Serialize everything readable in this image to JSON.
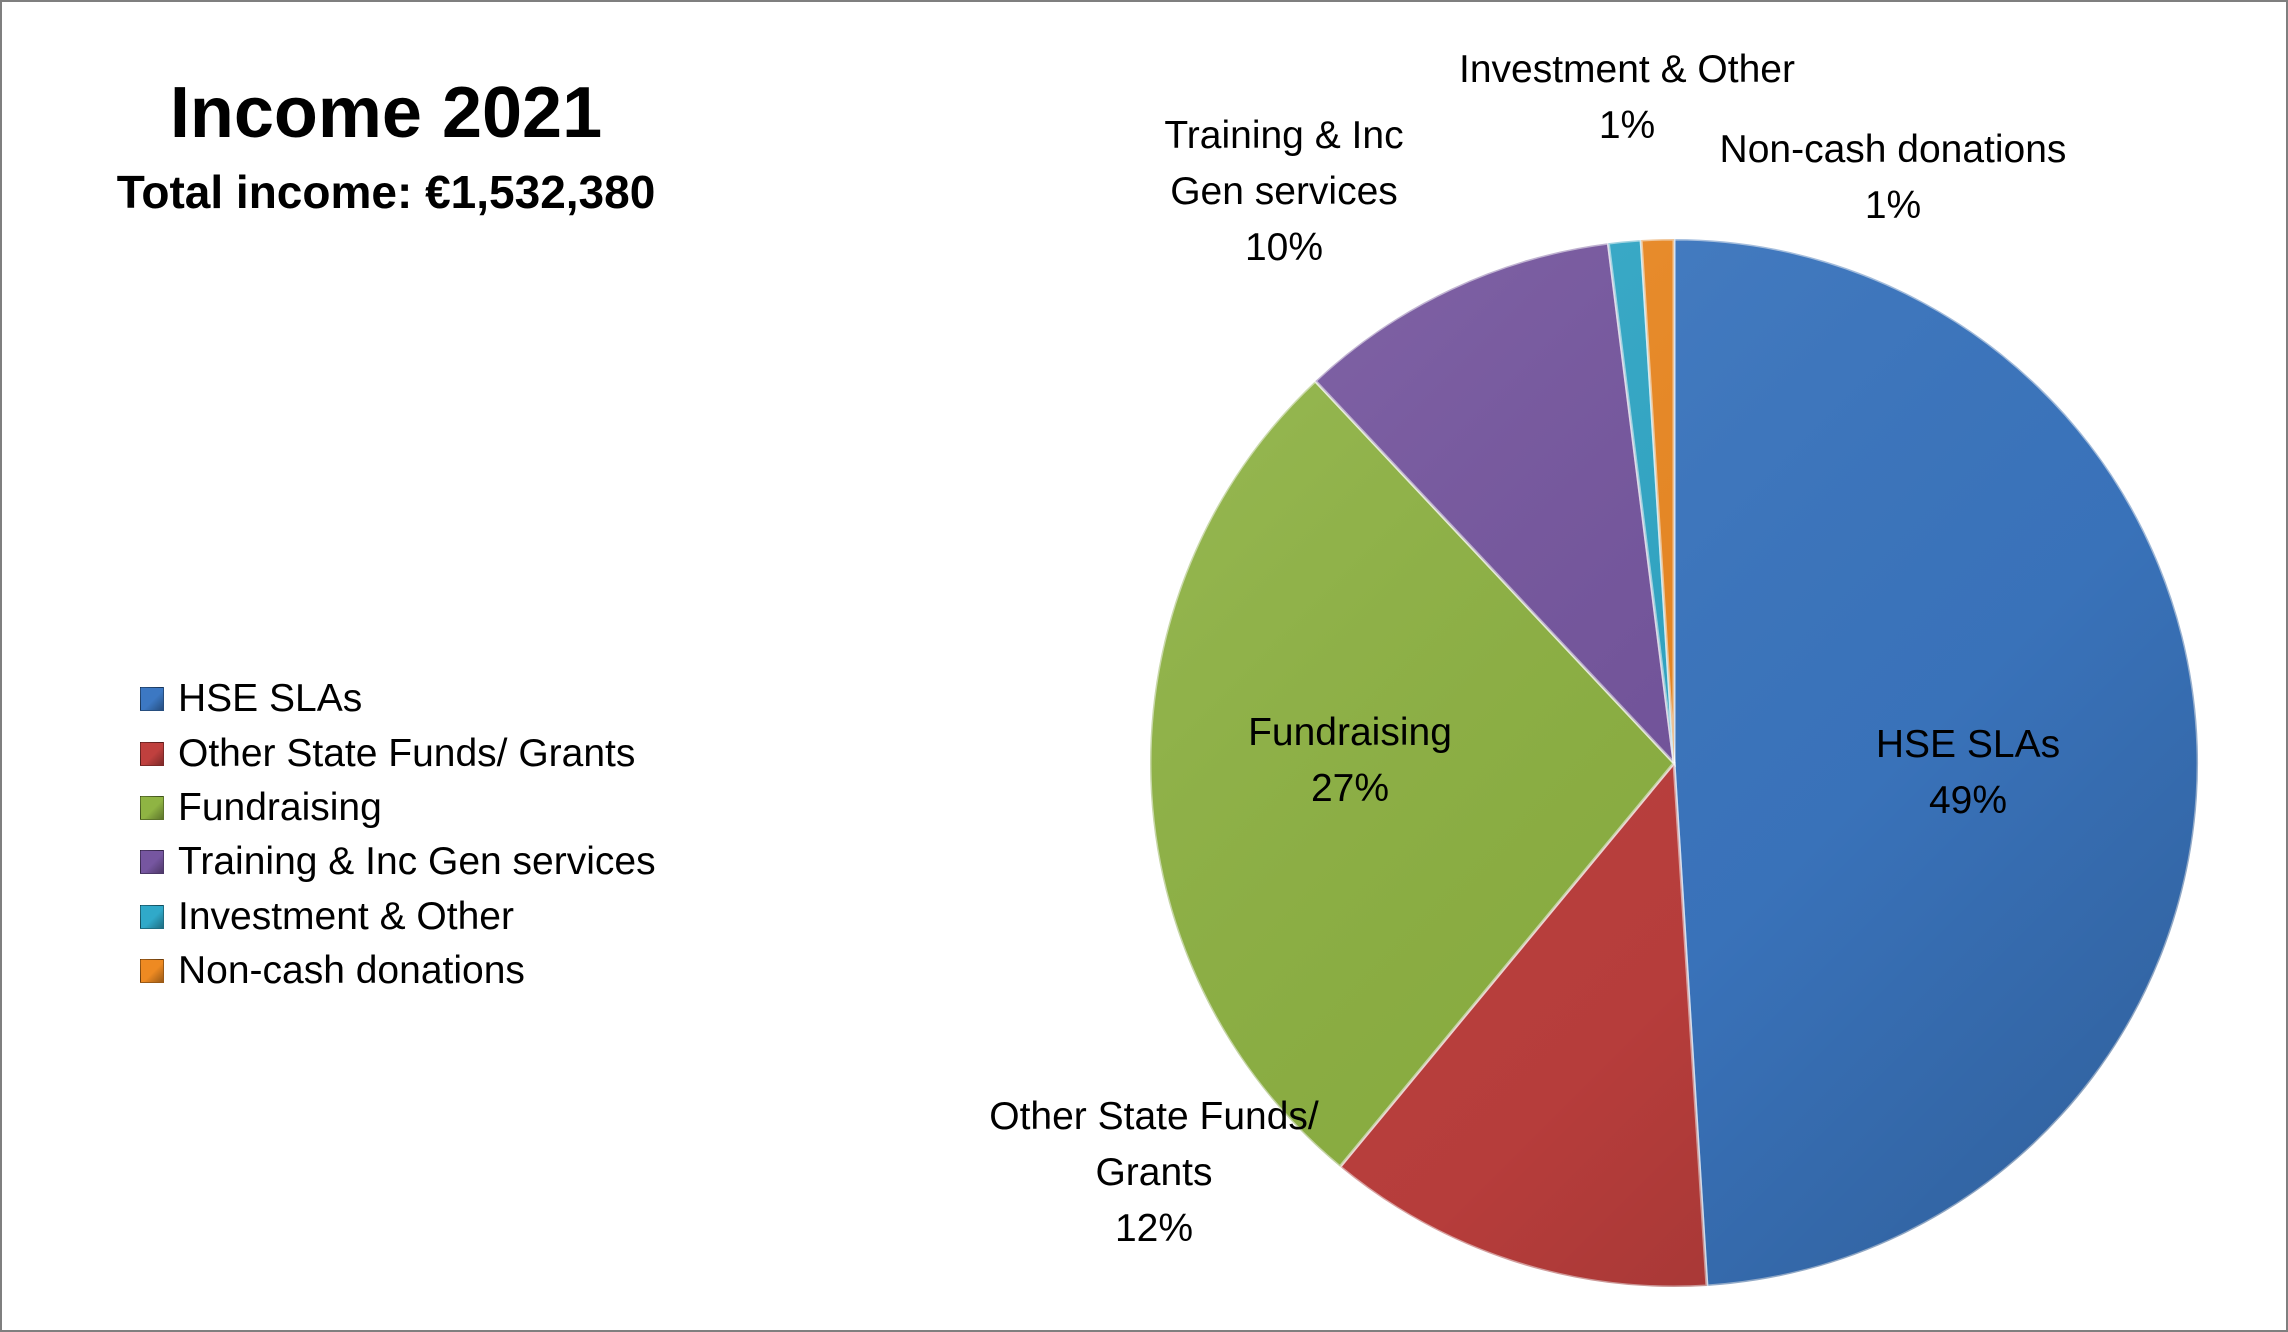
{
  "chart_data": {
    "type": "pie",
    "title": "Income 2021",
    "subtitle": "Total income: €1,532,380",
    "legend_position": "left",
    "slices": [
      {
        "name": "HSE SLAs",
        "value": 49,
        "label": "49%",
        "color": "#3c78c3",
        "label_lines": [
          "HSE SLAs",
          "49%"
        ]
      },
      {
        "name": "Other State Funds/ Grants",
        "value": 12,
        "label": "12%",
        "color": "#c0403e",
        "label_lines": [
          "Other State Funds/",
          "Grants",
          "12%"
        ]
      },
      {
        "name": "Fundraising",
        "value": 27,
        "label": "27%",
        "color": "#8fb443",
        "label_lines": [
          "Fundraising",
          "27%"
        ]
      },
      {
        "name": "Training & Inc Gen services",
        "value": 10,
        "label": "10%",
        "color": "#7656a0",
        "label_lines": [
          "Training & Inc",
          "Gen services",
          "10%"
        ]
      },
      {
        "name": "Investment & Other",
        "value": 1,
        "label": "1%",
        "color": "#30a9c9",
        "label_lines": [
          "Investment & Other",
          "1%"
        ]
      },
      {
        "name": "Non-cash donations",
        "value": 1,
        "label": "1%",
        "color": "#ee8a22",
        "label_lines": [
          "Non-cash donations",
          "1%"
        ]
      }
    ]
  }
}
